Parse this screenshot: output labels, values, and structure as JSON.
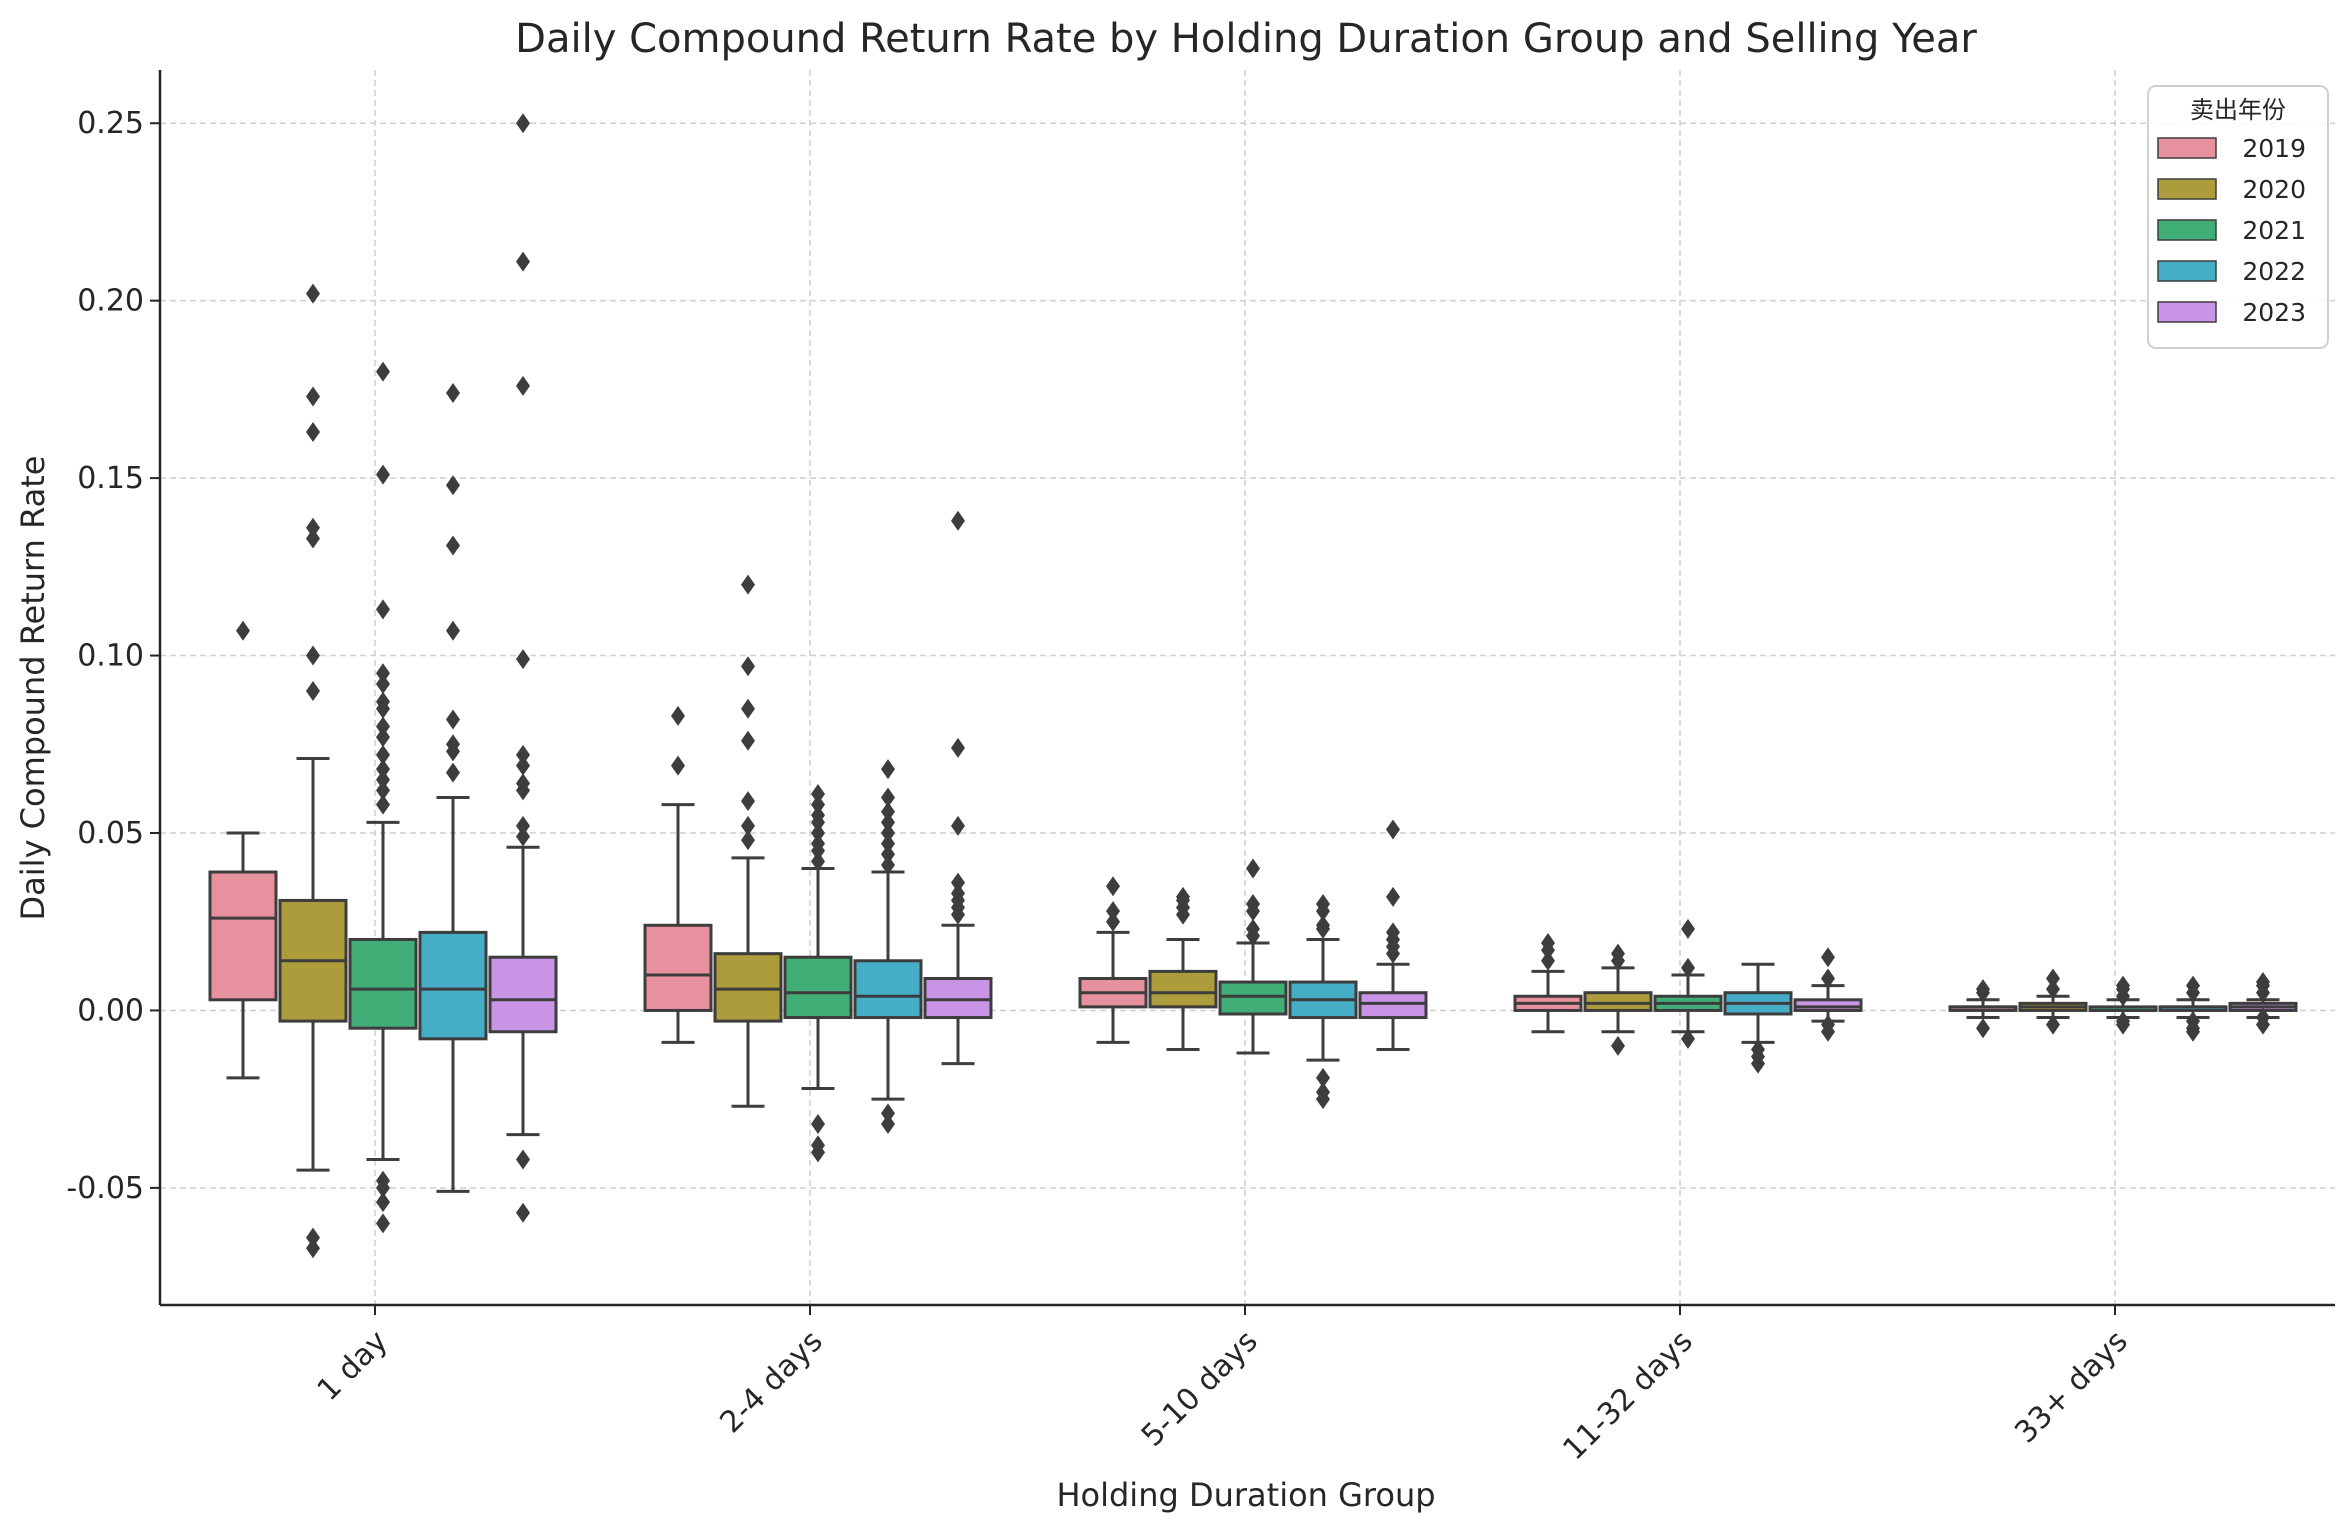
{
  "chart_data": {
    "type": "boxplot",
    "title": "Daily Compound Return Rate by Holding Duration Group and Selling Year",
    "xlabel": "Holding Duration Group",
    "ylabel": "Daily Compound Return Rate",
    "categories": [
      "1 day",
      "2-4 days",
      "5-10 days",
      "11-32 days",
      "33+ days"
    ],
    "ylim": [
      -0.083,
      0.265
    ],
    "yticks": [
      -0.05,
      0.0,
      0.05,
      0.1,
      0.15,
      0.2,
      0.25
    ],
    "ytick_labels": [
      "-0.05",
      "0.00",
      "0.05",
      "0.10",
      "0.15",
      "0.20",
      "0.25"
    ],
    "grid": true,
    "legend": {
      "title": "卖出年份",
      "placement": "top-right"
    },
    "series": [
      {
        "name": "2019",
        "color": "#e8919e",
        "boxes": [
          {
            "whislo": -0.019,
            "q1": 0.003,
            "med": 0.026,
            "q3": 0.039,
            "whishi": 0.05,
            "fliers": [
              0.107
            ]
          },
          {
            "whislo": -0.009,
            "q1": 0.0,
            "med": 0.01,
            "q3": 0.024,
            "whishi": 0.058,
            "fliers": [
              0.069,
              0.083
            ]
          },
          {
            "whislo": -0.009,
            "q1": 0.001,
            "med": 0.005,
            "q3": 0.009,
            "whishi": 0.022,
            "fliers": [
              0.025,
              0.028,
              0.035
            ]
          },
          {
            "whislo": -0.006,
            "q1": 0.0,
            "med": 0.002,
            "q3": 0.004,
            "whishi": 0.011,
            "fliers": [
              0.014,
              0.017,
              0.019
            ]
          },
          {
            "whislo": -0.002,
            "q1": 0.0,
            "med": 0.001,
            "q3": 0.001,
            "whishi": 0.003,
            "fliers": [
              -0.005,
              0.005,
              0.006
            ]
          }
        ]
      },
      {
        "name": "2020",
        "color": "#ad9c3b",
        "boxes": [
          {
            "whislo": -0.045,
            "q1": -0.003,
            "med": 0.014,
            "q3": 0.031,
            "whishi": 0.071,
            "fliers": [
              -0.067,
              -0.064,
              0.09,
              0.1,
              0.133,
              0.136,
              0.163,
              0.173,
              0.202
            ]
          },
          {
            "whislo": -0.027,
            "q1": -0.003,
            "med": 0.006,
            "q3": 0.016,
            "whishi": 0.043,
            "fliers": [
              0.048,
              0.052,
              0.059,
              0.076,
              0.085,
              0.097,
              0.12
            ]
          },
          {
            "whislo": -0.011,
            "q1": 0.001,
            "med": 0.005,
            "q3": 0.011,
            "whishi": 0.02,
            "fliers": [
              0.027,
              0.029,
              0.031,
              0.032
            ]
          },
          {
            "whislo": -0.006,
            "q1": 0.0,
            "med": 0.002,
            "q3": 0.005,
            "whishi": 0.012,
            "fliers": [
              -0.01,
              0.014,
              0.016
            ]
          },
          {
            "whislo": -0.002,
            "q1": 0.0,
            "med": 0.001,
            "q3": 0.002,
            "whishi": 0.004,
            "fliers": [
              -0.004,
              0.006,
              0.009
            ]
          }
        ]
      },
      {
        "name": "2021",
        "color": "#41ae78",
        "boxes": [
          {
            "whislo": -0.042,
            "q1": -0.005,
            "med": 0.006,
            "q3": 0.02,
            "whishi": 0.053,
            "fliers": [
              -0.06,
              -0.054,
              -0.05,
              -0.048,
              0.058,
              0.062,
              0.065,
              0.068,
              0.072,
              0.077,
              0.08,
              0.085,
              0.087,
              0.092,
              0.095,
              0.113,
              0.151,
              0.18
            ]
          },
          {
            "whislo": -0.022,
            "q1": -0.002,
            "med": 0.005,
            "q3": 0.015,
            "whishi": 0.04,
            "fliers": [
              -0.04,
              -0.038,
              -0.032,
              0.042,
              0.045,
              0.047,
              0.05,
              0.053,
              0.055,
              0.058,
              0.061
            ]
          },
          {
            "whislo": -0.012,
            "q1": -0.001,
            "med": 0.004,
            "q3": 0.008,
            "whishi": 0.019,
            "fliers": [
              0.021,
              0.023,
              0.028,
              0.03,
              0.04
            ]
          },
          {
            "whislo": -0.006,
            "q1": 0.0,
            "med": 0.002,
            "q3": 0.004,
            "whishi": 0.01,
            "fliers": [
              -0.008,
              0.012,
              0.023
            ]
          },
          {
            "whislo": -0.002,
            "q1": 0.0,
            "med": 0.0,
            "q3": 0.001,
            "whishi": 0.003,
            "fliers": [
              -0.004,
              -0.003,
              0.004,
              0.006,
              0.007
            ]
          }
        ]
      },
      {
        "name": "2022",
        "color": "#46adc6",
        "boxes": [
          {
            "whislo": -0.051,
            "q1": -0.008,
            "med": 0.006,
            "q3": 0.022,
            "whishi": 0.06,
            "fliers": [
              0.067,
              0.073,
              0.075,
              0.082,
              0.107,
              0.131,
              0.148,
              0.174
            ]
          },
          {
            "whislo": -0.025,
            "q1": -0.002,
            "med": 0.004,
            "q3": 0.014,
            "whishi": 0.039,
            "fliers": [
              -0.032,
              -0.029,
              0.041,
              0.044,
              0.047,
              0.05,
              0.053,
              0.056,
              0.06,
              0.068
            ]
          },
          {
            "whislo": -0.014,
            "q1": -0.002,
            "med": 0.003,
            "q3": 0.008,
            "whishi": 0.02,
            "fliers": [
              -0.025,
              -0.023,
              -0.019,
              0.023,
              0.024,
              0.028,
              0.03
            ]
          },
          {
            "whislo": -0.009,
            "q1": -0.001,
            "med": 0.002,
            "q3": 0.005,
            "whishi": 0.013,
            "fliers": [
              -0.015,
              -0.013,
              -0.011
            ]
          },
          {
            "whislo": -0.002,
            "q1": 0.0,
            "med": 0.001,
            "q3": 0.001,
            "whishi": 0.003,
            "fliers": [
              -0.006,
              -0.005,
              -0.003,
              0.005,
              0.007
            ]
          }
        ]
      },
      {
        "name": "2023",
        "color": "#c994e6",
        "boxes": [
          {
            "whislo": -0.035,
            "q1": -0.006,
            "med": 0.003,
            "q3": 0.015,
            "whishi": 0.046,
            "fliers": [
              -0.057,
              -0.042,
              0.049,
              0.052,
              0.062,
              0.064,
              0.069,
              0.072,
              0.099,
              0.176,
              0.211,
              0.25
            ]
          },
          {
            "whislo": -0.015,
            "q1": -0.002,
            "med": 0.003,
            "q3": 0.009,
            "whishi": 0.024,
            "fliers": [
              0.027,
              0.029,
              0.031,
              0.033,
              0.036,
              0.052,
              0.074,
              0.138
            ]
          },
          {
            "whislo": -0.011,
            "q1": -0.002,
            "med": 0.002,
            "q3": 0.005,
            "whishi": 0.013,
            "fliers": [
              0.016,
              0.018,
              0.02,
              0.022,
              0.032,
              0.051
            ]
          },
          {
            "whislo": -0.003,
            "q1": 0.0,
            "med": 0.001,
            "q3": 0.003,
            "whishi": 0.007,
            "fliers": [
              -0.006,
              -0.004,
              0.009,
              0.015
            ]
          },
          {
            "whislo": -0.002,
            "q1": 0.0,
            "med": 0.001,
            "q3": 0.002,
            "whishi": 0.003,
            "fliers": [
              -0.004,
              -0.002,
              0.005,
              0.007,
              0.008
            ]
          }
        ]
      }
    ]
  }
}
